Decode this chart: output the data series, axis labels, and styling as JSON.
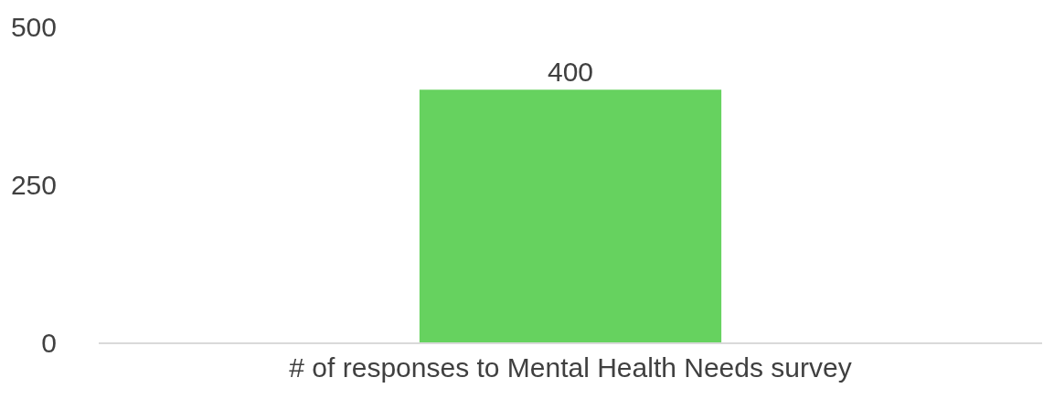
{
  "chart_data": {
    "type": "bar",
    "categories": [
      "# of responses to Mental Health Needs survey"
    ],
    "values": [
      400
    ],
    "color": "#66d25f",
    "ylim": [
      0,
      500
    ],
    "yticks": [
      0,
      250,
      500
    ],
    "data_labels": true,
    "legend": false
  }
}
